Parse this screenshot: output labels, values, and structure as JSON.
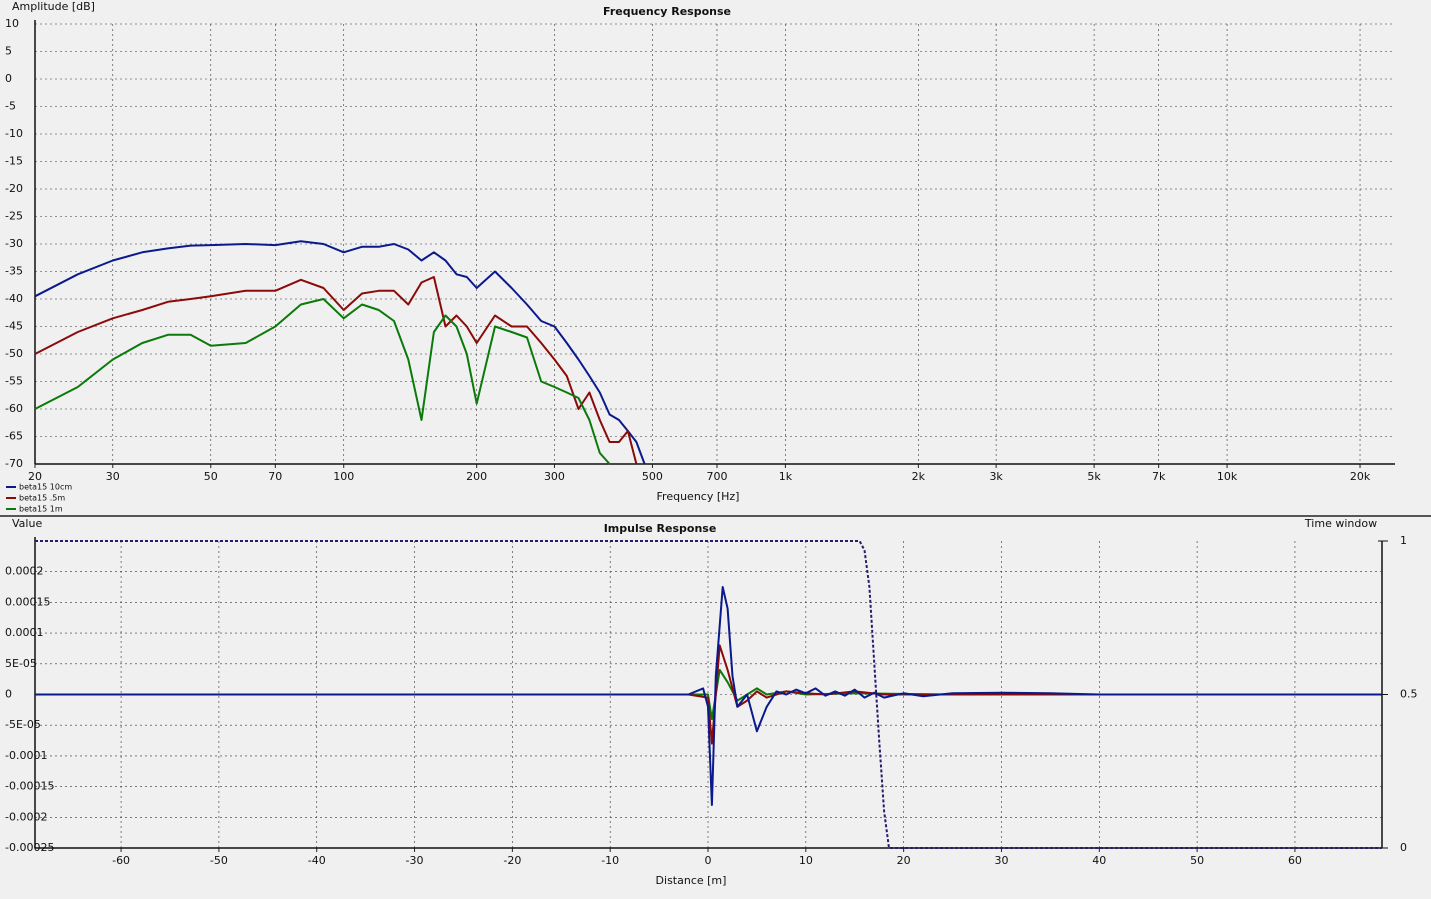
{
  "chart_data": [
    {
      "type": "line",
      "title": "Frequency Response",
      "ylabel": "Amplitude [dB]",
      "xlabel": "Frequency [Hz]",
      "xscale": "log",
      "grid": true,
      "legend": "lower left",
      "xlim": [
        20,
        24000
      ],
      "xticks": [
        20,
        30,
        50,
        70,
        100,
        200,
        300,
        500,
        700,
        {
          "value": 1000,
          "label": "1k"
        },
        {
          "value": 2000,
          "label": "2k"
        },
        {
          "value": 3000,
          "label": "3k"
        },
        {
          "value": 5000,
          "label": "5k"
        },
        {
          "value": 7000,
          "label": "7k"
        },
        {
          "value": 10000,
          "label": "10k"
        },
        {
          "value": 20000,
          "label": "20k"
        }
      ],
      "ylim": [
        -70,
        10
      ],
      "yticks": [
        10,
        5,
        0,
        -5,
        -10,
        -15,
        -20,
        -25,
        -30,
        -35,
        -40,
        -45,
        -50,
        -55,
        -60,
        -65,
        -70
      ],
      "x": [
        20,
        25,
        30,
        35,
        40,
        45,
        50,
        60,
        70,
        80,
        90,
        100,
        110,
        120,
        130,
        140,
        150,
        160,
        170,
        180,
        190,
        200,
        220,
        240,
        260,
        280,
        300,
        320,
        340,
        360,
        380,
        400,
        420,
        440,
        460,
        480,
        500
      ],
      "series": [
        {
          "name": "beta15 10cm",
          "color": "#0a1a8c",
          "values": [
            -39.5,
            -35.5,
            -33,
            -31.5,
            -30.8,
            -30.3,
            -30.2,
            -30,
            -30.2,
            -29.5,
            -30,
            -31.5,
            -30.5,
            -30.5,
            -30,
            -31,
            -33,
            -31.5,
            -33,
            -35.5,
            -36,
            -38,
            -35,
            -38,
            -41,
            -44,
            -45,
            -48,
            -51,
            -54,
            -57,
            -61,
            -62,
            -64,
            -66,
            -70,
            null
          ]
        },
        {
          "name": "beta15 .5m",
          "color": "#8b0a0a",
          "values": [
            -50,
            -46,
            -43.5,
            -42,
            -40.5,
            -40,
            -39.5,
            -38.5,
            -38.5,
            -36.5,
            -38,
            -42,
            -39,
            -38.5,
            -38.5,
            -41,
            -37,
            -36,
            -45,
            -43,
            -45,
            -48,
            -43,
            -45,
            -45,
            -48,
            -51,
            -54,
            -60,
            -57,
            -62,
            -66,
            -66,
            -64,
            -70,
            null,
            null
          ]
        },
        {
          "name": "beta15 1m",
          "color": "#0a7a0a",
          "values": [
            -60,
            -56,
            -51,
            -48,
            -46.5,
            -46.5,
            -48.5,
            -48,
            -45,
            -41,
            -40,
            -43.5,
            -41,
            -42,
            -44,
            -51,
            -62,
            -46,
            -43,
            -45,
            -50,
            -59,
            -45,
            -46,
            -47,
            -55,
            -56,
            -57,
            -58,
            -62,
            -68,
            -70,
            null,
            null,
            null,
            null,
            null
          ]
        }
      ]
    },
    {
      "type": "line",
      "title": "Impulse Response",
      "ylabel": "Value",
      "xlabel": "Distance [m]",
      "y2label": "Time window",
      "grid": true,
      "xlim": [
        -68.8,
        68.9
      ],
      "xticks": [
        -60,
        -50,
        -40,
        -30,
        -20,
        -10,
        0,
        10,
        20,
        30,
        40,
        50,
        60
      ],
      "ylim": [
        -0.00025,
        0.00025
      ],
      "yticks": [
        {
          "value": 0.0002,
          "label": "0.0002"
        },
        {
          "value": 0.00015,
          "label": "0.00015"
        },
        {
          "value": 0.0001,
          "label": "0.0001"
        },
        {
          "value": 5e-05,
          "label": "5E-05"
        },
        0,
        {
          "value": -5e-05,
          "label": "-5E-05"
        },
        {
          "value": -0.0001,
          "label": "-0.0001"
        },
        {
          "value": -0.00015,
          "label": "-0.00015"
        },
        {
          "value": -0.0002,
          "label": "-0.0002"
        },
        {
          "value": -0.00025,
          "label": "-0.00025"
        }
      ],
      "y2lim": [
        0,
        1
      ],
      "y2ticks": [
        1,
        0.5,
        0
      ],
      "series": [
        {
          "name": "beta15 1m",
          "color": "#0a7a0a",
          "x": [
            -2,
            0,
            0.4,
            1.2,
            2,
            3,
            5,
            6,
            8,
            10,
            15,
            25,
            40,
            50
          ],
          "values": [
            0,
            0,
            -4e-05,
            4e-05,
            2e-05,
            -1e-05,
            1e-05,
            0,
            5e-06,
            0,
            2e-06,
            0,
            0,
            0
          ]
        },
        {
          "name": "beta15 .5m",
          "color": "#8b0a0a",
          "x": [
            -2,
            0,
            0.4,
            1.2,
            2,
            3,
            4,
            5,
            6,
            8,
            10,
            12,
            15,
            18,
            25,
            40,
            50
          ],
          "values": [
            0,
            -5e-06,
            -8e-05,
            8e-05,
            4e-05,
            -2e-05,
            -1e-05,
            5e-06,
            -5e-06,
            5e-06,
            2e-06,
            0,
            5e-06,
            0,
            0,
            0,
            0
          ]
        },
        {
          "name": "beta15 10cm",
          "color": "#0a1a8c",
          "x": [
            -68.8,
            -3,
            -2,
            -0.5,
            0,
            0.4,
            0.8,
            1.5,
            2,
            2.5,
            3,
            4,
            5,
            6,
            7,
            8,
            9,
            10,
            11,
            12,
            13,
            14,
            15,
            16,
            17,
            18,
            20,
            22,
            25,
            30,
            35,
            40,
            50,
            60,
            68.9
          ],
          "values": [
            0,
            0,
            0,
            1e-05,
            -2e-05,
            -0.00018,
            3e-05,
            0.000175,
            0.00014,
            3e-05,
            -2e-05,
            0,
            -6e-05,
            -2e-05,
            5e-06,
            0,
            8e-06,
            2e-06,
            1e-05,
            -2e-06,
            5e-06,
            -2e-06,
            8e-06,
            -5e-06,
            3e-06,
            -5e-06,
            2e-06,
            -3e-06,
            2e-06,
            3e-06,
            2e-06,
            0,
            0,
            0,
            0
          ]
        },
        {
          "name": "Time window",
          "color": "#2a1a6e",
          "dashed": true,
          "axis": "y2",
          "x": [
            -68.8,
            15.5,
            16,
            16.5,
            17,
            17.5,
            18,
            18.5,
            68.9
          ],
          "values": [
            1,
            1,
            0.97,
            0.85,
            0.6,
            0.35,
            0.12,
            0,
            0
          ]
        }
      ]
    }
  ]
}
